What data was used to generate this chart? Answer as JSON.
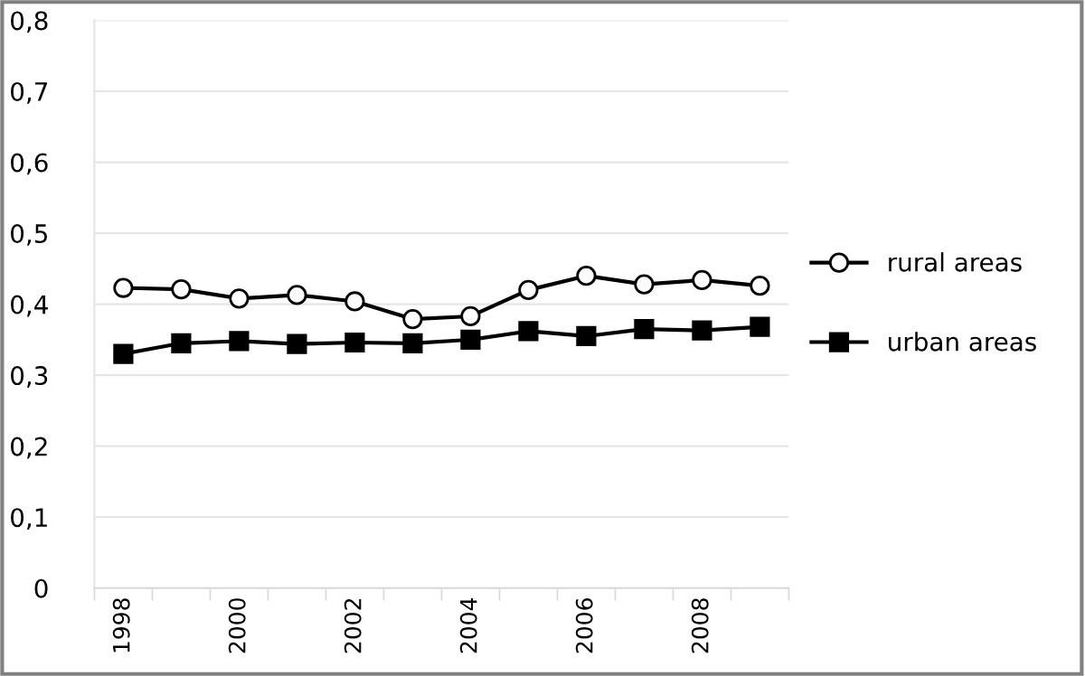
{
  "chart_data": {
    "type": "line",
    "categories": [
      "1998",
      null,
      "2000",
      null,
      "2002",
      null,
      "2004",
      null,
      "2006",
      null,
      "2008",
      null
    ],
    "series": [
      {
        "name": "rural areas",
        "color": "#000000",
        "marker": "circle",
        "values": [
          0.423,
          0.421,
          0.408,
          0.413,
          0.404,
          0.379,
          0.383,
          0.42,
          0.44,
          0.428,
          0.434,
          0.426
        ]
      },
      {
        "name": "urban areas",
        "color": "#000000",
        "marker": "square",
        "values": [
          0.33,
          0.345,
          0.348,
          0.344,
          0.346,
          0.345,
          0.35,
          0.362,
          0.355,
          0.365,
          0.363,
          0.368
        ]
      }
    ],
    "ylim": [
      0,
      0.8
    ],
    "yticks": [
      {
        "value": 0,
        "label": "0"
      },
      {
        "value": 0.1,
        "label": "0,1"
      },
      {
        "value": 0.2,
        "label": "0,2"
      },
      {
        "value": 0.3,
        "label": "0,3"
      },
      {
        "value": 0.4,
        "label": "0,4"
      },
      {
        "value": 0.5,
        "label": "0,5"
      },
      {
        "value": 0.6,
        "label": "0,6"
      },
      {
        "value": 0.7,
        "label": "0,7"
      },
      {
        "value": 0.8,
        "label": "0,8"
      }
    ],
    "grid": "y",
    "legend": "right",
    "line_style": "solid"
  }
}
